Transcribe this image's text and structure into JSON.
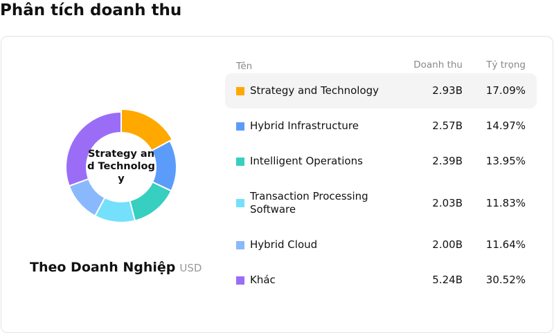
{
  "header": {
    "title": "Phân tích doanh thu"
  },
  "chart_data": {
    "type": "pie",
    "title": "Theo Doanh Nghiệp",
    "unit": "USD",
    "center_label": "Strategy and Technology",
    "columns": [
      "Tên",
      "Doanh thu",
      "Tỷ trọng"
    ],
    "categories": [
      "Strategy and Technology",
      "Hybrid Infrastructure",
      "Intelligent Operations",
      "Transaction Processing Software",
      "Hybrid Cloud",
      "Khác"
    ],
    "revenue": [
      "2.93B",
      "2.57B",
      "2.39B",
      "2.03B",
      "2.00B",
      "5.24B"
    ],
    "values": [
      17.09,
      14.97,
      13.95,
      11.83,
      11.64,
      30.52
    ],
    "value_labels": [
      "17.09%",
      "14.97%",
      "13.95%",
      "11.83%",
      "11.64%",
      "30.52%"
    ],
    "colors": [
      "#ffa800",
      "#5b9cfb",
      "#36cfc0",
      "#74e0fb",
      "#8ab8fc",
      "#9b6df7"
    ]
  }
}
